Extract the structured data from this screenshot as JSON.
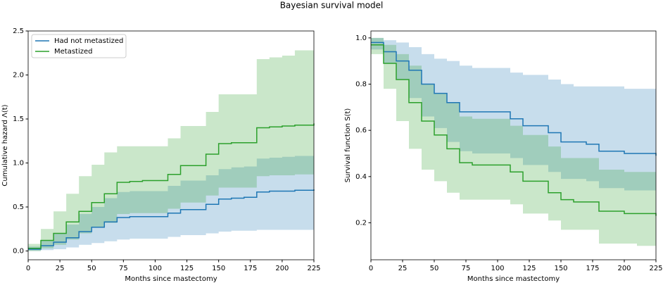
{
  "title": "Bayesian survival model",
  "chart_data": [
    {
      "type": "line",
      "step": true,
      "xlabel": "Months since mastectomy",
      "ylabel": "Cumulative hazard Λ(t)",
      "x": [
        0,
        10,
        20,
        30,
        40,
        50,
        60,
        70,
        80,
        90,
        100,
        110,
        120,
        130,
        140,
        150,
        160,
        170,
        180,
        190,
        200,
        210,
        225
      ],
      "xlim": [
        0,
        225
      ],
      "xticks": [
        0,
        25,
        50,
        75,
        100,
        125,
        150,
        175,
        200,
        225
      ],
      "ylim": [
        -0.1,
        2.5
      ],
      "yticks": [
        {
          "value": 0,
          "label": "0.0"
        },
        0.5,
        {
          "value": 1,
          "label": "1.0"
        },
        1.5,
        {
          "value": 2,
          "label": "2.0"
        },
        2.5
      ],
      "legend": "upper left",
      "series": [
        {
          "name": "Had not metastized",
          "color": "#1f77b4",
          "values": [
            0.02,
            0.06,
            0.1,
            0.15,
            0.22,
            0.27,
            0.33,
            0.38,
            0.39,
            0.39,
            0.39,
            0.43,
            0.47,
            0.47,
            0.53,
            0.59,
            0.6,
            0.61,
            0.67,
            0.68,
            0.68,
            0.69,
            0.7
          ],
          "lower": [
            0,
            0.01,
            0.02,
            0.04,
            0.07,
            0.09,
            0.11,
            0.13,
            0.14,
            0.14,
            0.14,
            0.16,
            0.18,
            0.18,
            0.2,
            0.22,
            0.23,
            0.23,
            0.24,
            0.24,
            0.24,
            0.24,
            0.24
          ],
          "upper": [
            0.05,
            0.12,
            0.2,
            0.3,
            0.42,
            0.5,
            0.6,
            0.67,
            0.68,
            0.68,
            0.68,
            0.74,
            0.8,
            0.8,
            0.86,
            0.93,
            0.95,
            0.96,
            1.05,
            1.06,
            1.07,
            1.08,
            1.1
          ]
        },
        {
          "name": "Metastized",
          "color": "#2ca02c",
          "values": [
            0.03,
            0.12,
            0.2,
            0.33,
            0.45,
            0.55,
            0.65,
            0.78,
            0.79,
            0.8,
            0.8,
            0.87,
            0.97,
            0.97,
            1.1,
            1.22,
            1.23,
            1.23,
            1.4,
            1.41,
            1.42,
            1.43,
            1.45
          ],
          "lower": [
            0,
            0.03,
            0.07,
            0.13,
            0.2,
            0.27,
            0.32,
            0.42,
            0.43,
            0.43,
            0.43,
            0.48,
            0.55,
            0.55,
            0.63,
            0.72,
            0.72,
            0.72,
            0.85,
            0.86,
            0.86,
            0.87,
            0.88
          ],
          "upper": [
            0.08,
            0.25,
            0.45,
            0.65,
            0.85,
            0.98,
            1.12,
            1.19,
            1.19,
            1.19,
            1.19,
            1.28,
            1.42,
            1.42,
            1.58,
            1.78,
            1.78,
            1.78,
            2.18,
            2.2,
            2.22,
            2.28,
            2.42
          ]
        }
      ]
    },
    {
      "type": "line",
      "step": true,
      "xlabel": "Months since mastectomy",
      "ylabel": "Survival function S(t)",
      "x": [
        0,
        10,
        20,
        30,
        40,
        50,
        60,
        70,
        80,
        90,
        100,
        110,
        120,
        130,
        140,
        150,
        160,
        170,
        180,
        190,
        200,
        210,
        225
      ],
      "xlim": [
        0,
        225
      ],
      "xticks": [
        0,
        25,
        50,
        75,
        100,
        125,
        150,
        175,
        200,
        225
      ],
      "ylim": [
        0.04,
        1.03
      ],
      "yticks": [
        0.2,
        0.4,
        0.6,
        0.8,
        {
          "value": 1,
          "label": "1.0"
        }
      ],
      "series": [
        {
          "color": "#1f77b4",
          "values": [
            0.98,
            0.94,
            0.9,
            0.86,
            0.8,
            0.76,
            0.72,
            0.68,
            0.68,
            0.68,
            0.68,
            0.65,
            0.62,
            0.62,
            0.59,
            0.55,
            0.55,
            0.54,
            0.51,
            0.51,
            0.5,
            0.5,
            0.49
          ],
          "lower": [
            0.95,
            0.89,
            0.82,
            0.74,
            0.66,
            0.61,
            0.55,
            0.51,
            0.5,
            0.5,
            0.5,
            0.48,
            0.45,
            0.45,
            0.42,
            0.39,
            0.39,
            0.38,
            0.35,
            0.35,
            0.34,
            0.34,
            0.33
          ],
          "upper": [
            1.0,
            0.99,
            0.98,
            0.96,
            0.93,
            0.91,
            0.9,
            0.88,
            0.87,
            0.87,
            0.87,
            0.85,
            0.84,
            0.84,
            0.82,
            0.8,
            0.79,
            0.79,
            0.79,
            0.79,
            0.78,
            0.78,
            0.78
          ]
        },
        {
          "color": "#2ca02c",
          "values": [
            0.97,
            0.89,
            0.82,
            0.72,
            0.64,
            0.58,
            0.52,
            0.46,
            0.45,
            0.45,
            0.45,
            0.42,
            0.38,
            0.38,
            0.33,
            0.3,
            0.29,
            0.29,
            0.25,
            0.25,
            0.24,
            0.24,
            0.23
          ],
          "lower": [
            0.93,
            0.78,
            0.64,
            0.52,
            0.43,
            0.38,
            0.33,
            0.3,
            0.3,
            0.3,
            0.3,
            0.28,
            0.24,
            0.24,
            0.21,
            0.17,
            0.17,
            0.17,
            0.11,
            0.11,
            0.11,
            0.1,
            0.09
          ],
          "upper": [
            1.0,
            0.97,
            0.93,
            0.88,
            0.8,
            0.76,
            0.72,
            0.66,
            0.65,
            0.65,
            0.65,
            0.62,
            0.58,
            0.58,
            0.53,
            0.48,
            0.48,
            0.48,
            0.43,
            0.43,
            0.42,
            0.42,
            0.41
          ]
        }
      ]
    }
  ]
}
